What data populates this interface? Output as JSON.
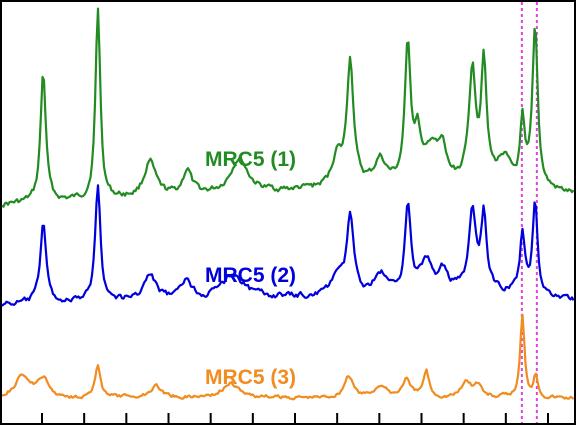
{
  "chart_data": {
    "type": "line",
    "title": "",
    "xlabel": "",
    "ylabel": "",
    "xlim": [
      0,
      100
    ],
    "grid": false,
    "legend": "inline",
    "x_tick_count": 13,
    "marker_lines": {
      "color": "#e040e0",
      "style": "dotted",
      "x": [
        90.6,
        93.2
      ]
    },
    "series": [
      {
        "name": "MRC5 (1)",
        "color": "#228b22",
        "baseline": 205,
        "noise": 6,
        "peaks": [
          [
            7.5,
            130,
            0.55
          ],
          [
            17.0,
            190,
            0.5
          ],
          [
            26.0,
            35,
            1.2
          ],
          [
            32.5,
            25,
            0.9
          ],
          [
            41.5,
            35,
            1.8
          ],
          [
            58.5,
            30,
            1.0
          ],
          [
            60.8,
            125,
            0.7
          ],
          [
            66.0,
            25,
            1.2
          ],
          [
            70.8,
            135,
            0.6
          ],
          [
            72.5,
            45,
            0.7
          ],
          [
            75.0,
            35,
            1.2
          ],
          [
            76.8,
            30,
            0.8
          ],
          [
            82.0,
            110,
            0.7
          ],
          [
            84.0,
            120,
            0.55
          ],
          [
            87.5,
            25,
            1.2
          ],
          [
            90.7,
            60,
            0.45
          ],
          [
            92.9,
            160,
            0.55
          ]
        ],
        "trend": [
          [
            0,
            0
          ],
          [
            55,
            15
          ],
          [
            85,
            22
          ],
          [
            100,
            10
          ]
        ]
      },
      {
        "name": "MRC5 (2)",
        "color": "#0000dd",
        "baseline": 305,
        "noise": 6,
        "peaks": [
          [
            7.5,
            82,
            0.6
          ],
          [
            17.0,
            118,
            0.55
          ],
          [
            26.0,
            25,
            1.3
          ],
          [
            32.5,
            20,
            1.0
          ],
          [
            40.5,
            25,
            2.2
          ],
          [
            58.5,
            20,
            1.0
          ],
          [
            60.8,
            78,
            0.7
          ],
          [
            66.0,
            20,
            1.2
          ],
          [
            70.8,
            88,
            0.6
          ],
          [
            74.0,
            30,
            1.2
          ],
          [
            77.0,
            20,
            1.0
          ],
          [
            82.0,
            78,
            0.7
          ],
          [
            84.0,
            75,
            0.55
          ],
          [
            90.7,
            58,
            0.5
          ],
          [
            92.9,
            95,
            0.5
          ]
        ],
        "trend": [
          [
            0,
            0
          ],
          [
            55,
            8
          ],
          [
            85,
            14
          ],
          [
            100,
            5
          ]
        ]
      },
      {
        "name": "MRC5 (3)",
        "color": "#f08c20",
        "baseline": 398,
        "noise": 4,
        "peaks": [
          [
            4.0,
            22,
            1.6
          ],
          [
            7.5,
            18,
            1.0
          ],
          [
            17.0,
            30,
            0.6
          ],
          [
            27.0,
            12,
            1.2
          ],
          [
            40.0,
            14,
            1.8
          ],
          [
            60.5,
            22,
            0.9
          ],
          [
            66.0,
            12,
            1.2
          ],
          [
            70.5,
            18,
            0.8
          ],
          [
            74.0,
            26,
            0.6
          ],
          [
            81.0,
            16,
            1.0
          ],
          [
            83.0,
            12,
            0.8
          ],
          [
            90.7,
            82,
            0.45
          ],
          [
            93.0,
            22,
            0.5
          ]
        ],
        "trend": [
          [
            0,
            0
          ],
          [
            100,
            0
          ]
        ]
      }
    ]
  }
}
